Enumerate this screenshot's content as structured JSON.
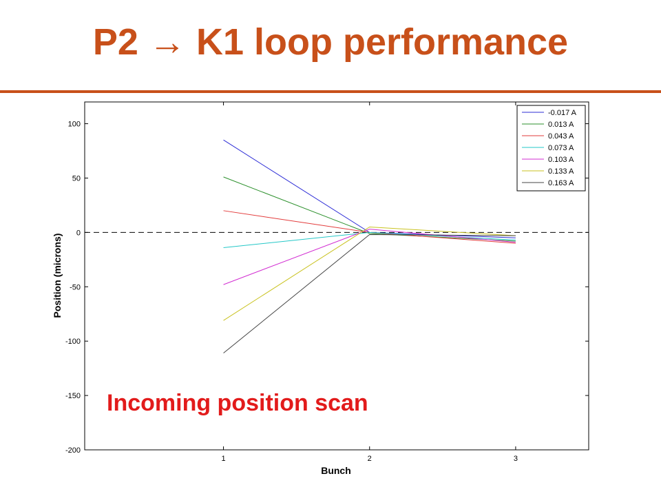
{
  "slide": {
    "title": "P2 → K1 loop performance"
  },
  "colors": {
    "title": "#c8501a",
    "annotation": "#e21b1b"
  },
  "chart_data": {
    "type": "line",
    "title": "",
    "xlabel": "Bunch",
    "ylabel": "Position (microns)",
    "xlim": [
      0.05,
      3.5
    ],
    "ylim": [
      -200,
      120
    ],
    "x": [
      1,
      2,
      3
    ],
    "xticks": [
      1,
      2,
      3
    ],
    "yticks": [
      100,
      50,
      0,
      -50,
      -100,
      -150,
      -200
    ],
    "reference_line": {
      "y": 0,
      "style": "dashed"
    },
    "legend_position": "top-right",
    "annotation": "Incoming position scan",
    "series": [
      {
        "name": "-0.017 A",
        "color": "#2b2bd6",
        "values": [
          85,
          0,
          -5
        ]
      },
      {
        "name": "0.013 A",
        "color": "#2a8f2a",
        "values": [
          51,
          -1,
          -8
        ]
      },
      {
        "name": "0.043 A",
        "color": "#e23a3a",
        "values": [
          20,
          0,
          -10
        ]
      },
      {
        "name": "0.073 A",
        "color": "#23c7c7",
        "values": [
          -14,
          0,
          -7
        ]
      },
      {
        "name": "0.103 A",
        "color": "#d12bd1",
        "values": [
          -48,
          3,
          -9
        ]
      },
      {
        "name": "0.133 A",
        "color": "#c9c21f",
        "values": [
          -81,
          5,
          -3
        ]
      },
      {
        "name": "0.163 A",
        "color": "#444444",
        "values": [
          -111,
          -2,
          -3
        ]
      }
    ]
  }
}
